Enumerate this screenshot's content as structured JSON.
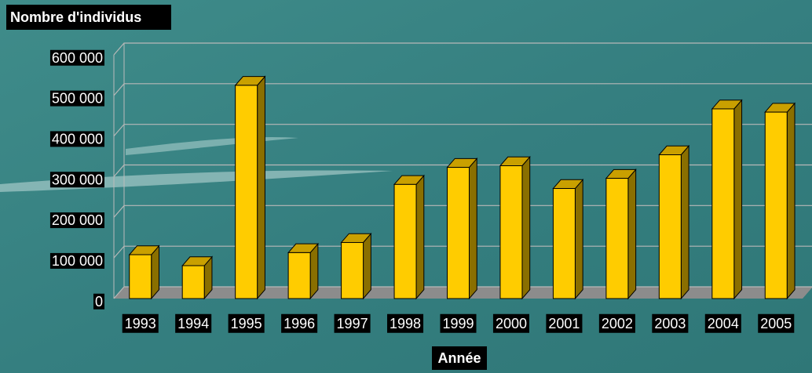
{
  "chart_data": {
    "type": "bar",
    "title": "Nombre d'individus",
    "x_label": "Année",
    "categories": [
      "1993",
      "1994",
      "1995",
      "1996",
      "1997",
      "1998",
      "1999",
      "2000",
      "2001",
      "2002",
      "2003",
      "2004",
      "2005"
    ],
    "values": [
      108000,
      81000,
      525000,
      113000,
      138000,
      281000,
      323000,
      327000,
      271000,
      296000,
      354000,
      467000,
      459000
    ],
    "color": "#ffcc00",
    "ylim": [
      0,
      600000
    ],
    "yticks": [
      0,
      {
        "value": 100000,
        "label": "100 000"
      },
      {
        "value": 200000,
        "label": "200 000"
      },
      {
        "value": 300000,
        "label": "300 000"
      },
      {
        "value": 400000,
        "label": "400 000"
      },
      {
        "value": 500000,
        "label": "500 000"
      },
      {
        "value": 600000,
        "label": "600 000"
      }
    ],
    "grid": true
  }
}
